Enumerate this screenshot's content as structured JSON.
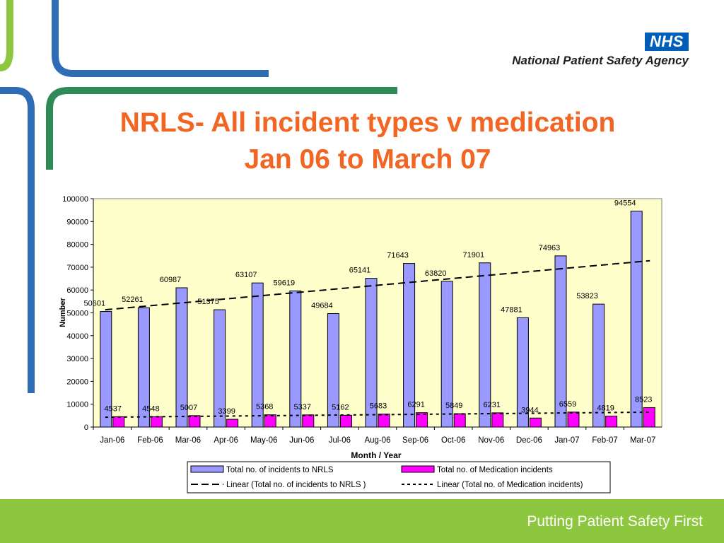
{
  "header": {
    "logo_text": "NHS",
    "agency_name": "National Patient Safety Agency"
  },
  "slide": {
    "title_line1": "NRLS- All incident types v medication",
    "title_line2": "Jan 06 to March 07",
    "title_color": "#f26522"
  },
  "footer": {
    "tagline": "Putting Patient Safety First",
    "bar_color": "#8dc63f"
  },
  "colors": {
    "nrls_bar": "#9999ff",
    "medication_bar": "#ff00ff",
    "plot_background": "#ffffcc",
    "deco_green_light": "#8dc63f",
    "deco_blue": "#2e6db4",
    "deco_green_dark": "#2e8b57"
  },
  "chart_data": {
    "type": "bar",
    "title": "",
    "xlabel": "Month / Year",
    "ylabel": "Number",
    "ylim": [
      0,
      100000
    ],
    "yticks": [
      0,
      10000,
      20000,
      30000,
      40000,
      50000,
      60000,
      70000,
      80000,
      90000,
      100000
    ],
    "categories": [
      "Jan-06",
      "Feb-06",
      "Mar-06",
      "Apr-06",
      "May-06",
      "Jun-06",
      "Jul-06",
      "Aug-06",
      "Sep-06",
      "Oct-06",
      "Nov-06",
      "Dec-06",
      "Jan-07",
      "Feb-07",
      "Mar-07"
    ],
    "series": [
      {
        "name": "Total no. of incidents to NRLS",
        "values": [
          50601,
          52261,
          60987,
          51375,
          63107,
          59619,
          49684,
          65141,
          71643,
          63820,
          71901,
          47881,
          74963,
          53823,
          94554
        ]
      },
      {
        "name": "Total no. of Medication incidents",
        "values": [
          4537,
          4548,
          5007,
          3399,
          5368,
          5337,
          5162,
          5683,
          6291,
          5849,
          6231,
          3944,
          6559,
          4819,
          8523
        ]
      }
    ],
    "trendlines": [
      {
        "name": "Linear (Total no. of incidents to NRLS )",
        "style": "long-dash"
      },
      {
        "name": "Linear (Total no. of Medication incidents)",
        "style": "short-dash"
      }
    ],
    "legend_position": "bottom",
    "grid": false
  }
}
